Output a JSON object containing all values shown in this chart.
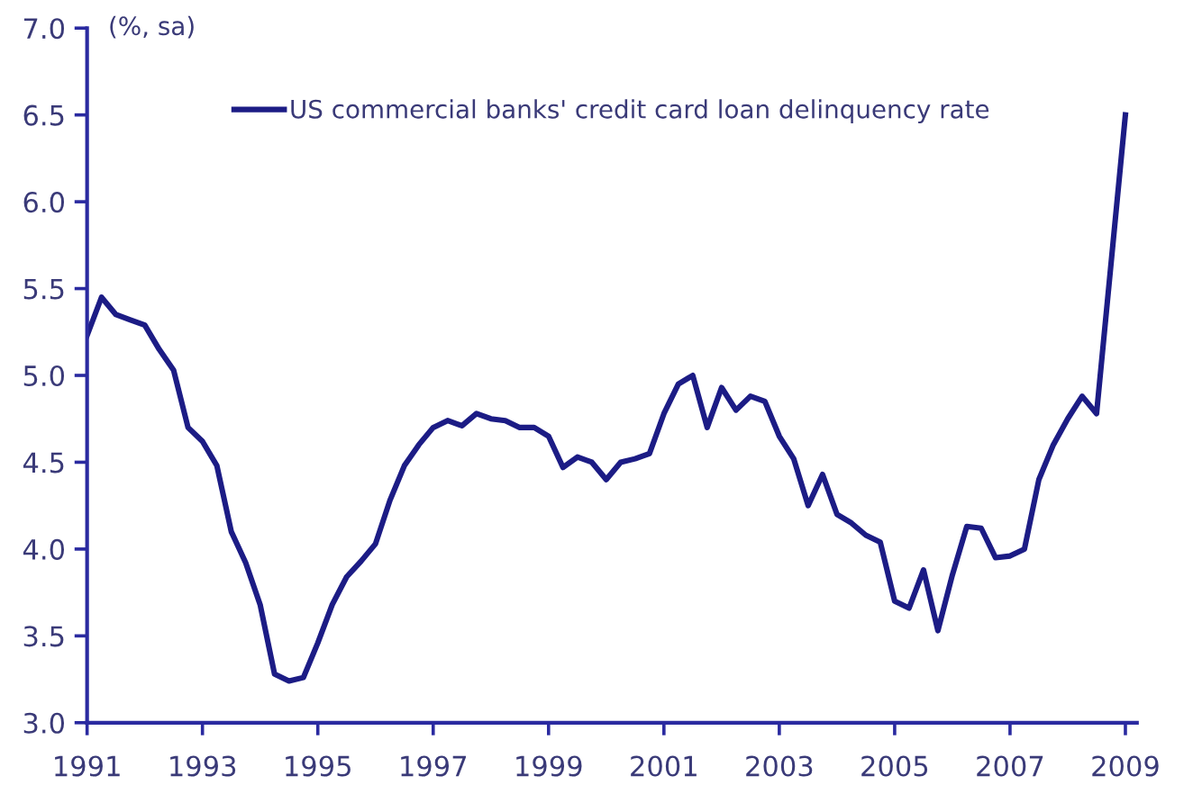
{
  "chart_data": {
    "type": "line",
    "ylabel": "(%, sa)",
    "x": [
      1991.0,
      1991.25,
      1991.5,
      1991.75,
      1992.0,
      1992.25,
      1992.5,
      1992.75,
      1993.0,
      1993.25,
      1993.5,
      1993.75,
      1994.0,
      1994.25,
      1994.5,
      1994.75,
      1995.0,
      1995.25,
      1995.5,
      1995.75,
      1996.0,
      1996.25,
      1996.5,
      1996.75,
      1997.0,
      1997.25,
      1997.5,
      1997.75,
      1998.0,
      1998.25,
      1998.5,
      1998.75,
      1999.0,
      1999.25,
      1999.5,
      1999.75,
      2000.0,
      2000.25,
      2000.5,
      2000.75,
      2001.0,
      2001.25,
      2001.5,
      2001.75,
      2002.0,
      2002.25,
      2002.5,
      2002.75,
      2003.0,
      2003.25,
      2003.5,
      2003.75,
      2004.0,
      2004.25,
      2004.5,
      2004.75,
      2005.0,
      2005.25,
      2005.5,
      2005.75,
      2006.0,
      2006.25,
      2006.5,
      2006.75,
      2007.0,
      2007.25,
      2007.5,
      2007.75,
      2008.0,
      2008.25,
      2008.5,
      2009.0
    ],
    "series": [
      {
        "name": "US commercial banks' credit card loan delinquency rate",
        "color": "#1c1c85",
        "values": [
          5.23,
          5.45,
          5.35,
          5.32,
          5.29,
          5.15,
          5.03,
          4.7,
          4.62,
          4.48,
          4.1,
          3.92,
          3.68,
          3.28,
          3.24,
          3.26,
          3.46,
          3.68,
          3.84,
          3.93,
          4.03,
          4.28,
          4.48,
          4.6,
          4.7,
          4.74,
          4.71,
          4.78,
          4.75,
          4.74,
          4.7,
          4.7,
          4.65,
          4.47,
          4.53,
          4.5,
          4.4,
          4.5,
          4.52,
          4.55,
          4.78,
          4.95,
          5.0,
          4.7,
          4.93,
          4.8,
          4.88,
          4.85,
          4.65,
          4.52,
          4.25,
          4.43,
          4.2,
          4.15,
          4.08,
          4.04,
          3.7,
          3.66,
          3.88,
          3.53,
          3.85,
          4.13,
          4.12,
          3.95,
          3.96,
          4.0,
          4.4,
          4.6,
          4.75,
          4.88,
          4.78,
          6.5
        ]
      }
    ],
    "xlim": [
      1991,
      2009.2
    ],
    "xticks": [
      1991,
      1993,
      1995,
      1997,
      1999,
      2001,
      2003,
      2005,
      2007,
      2009
    ],
    "ylim": [
      3.0,
      7.0
    ],
    "yticks": [
      {
        "value": 3.0,
        "label": "3.0"
      },
      {
        "value": 3.5,
        "label": "3.5"
      },
      {
        "value": 4.0,
        "label": "4.0"
      },
      {
        "value": 4.5,
        "label": "4.5"
      },
      {
        "value": 5.0,
        "label": "5.0"
      },
      {
        "value": 5.5,
        "label": "5.5"
      },
      {
        "value": 6.0,
        "label": "6.0"
      },
      {
        "value": 6.5,
        "label": "6.5"
      },
      {
        "value": 7.0,
        "label": "7.0"
      }
    ],
    "grid": false,
    "legend": "top",
    "marker": "none",
    "line_style": "solid"
  }
}
